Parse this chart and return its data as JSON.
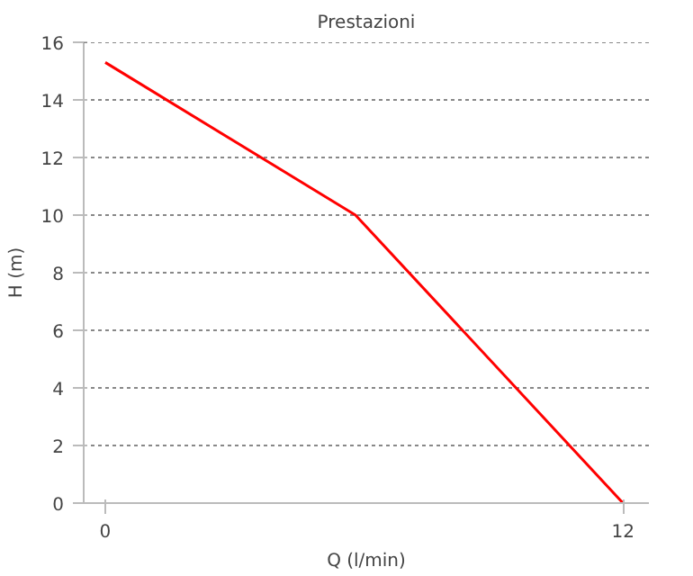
{
  "chart_data": {
    "type": "line",
    "title": "Prestazioni",
    "xlabel": "Q (l/min)",
    "ylabel": "H (m)",
    "x": [
      0,
      5.8,
      12
    ],
    "series": [
      {
        "color": "#ff0000",
        "values": [
          15.3,
          10.0,
          0
        ]
      }
    ],
    "xlim": [
      -0.5,
      12.6
    ],
    "xticks": [
      0,
      12
    ],
    "ylim": [
      0,
      16
    ],
    "yticks": [
      0,
      2,
      4,
      6,
      8,
      10,
      12,
      14,
      16
    ],
    "grid": "y",
    "marker": "none",
    "line_style": "solid"
  }
}
